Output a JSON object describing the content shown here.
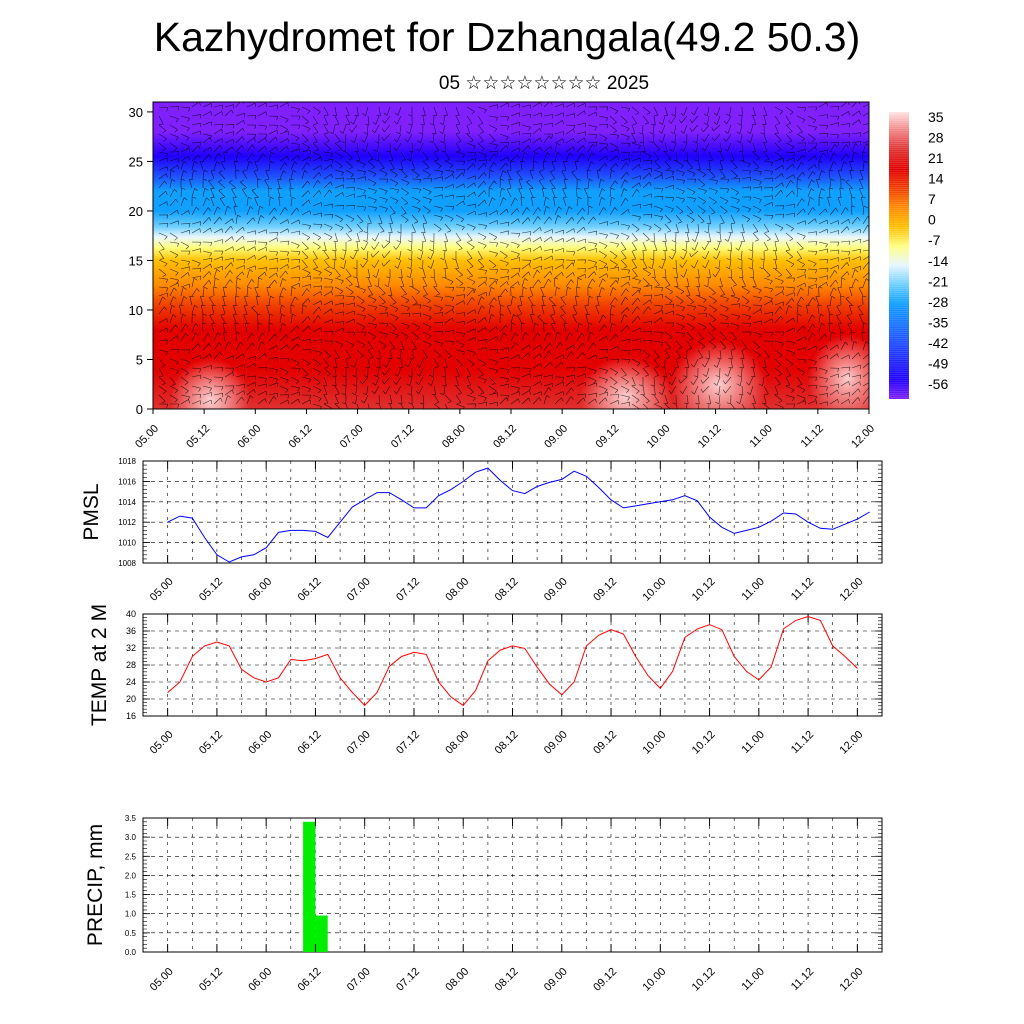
{
  "header": {
    "title": "Kazhydromet for Dzhangala(49.2 50.3)",
    "subtitle": "05 ☆☆☆☆☆☆☆☆ 2025"
  },
  "chart_data": [
    {
      "type": "heatmap",
      "name": "temperature-cross-section",
      "x_labels": [
        "05.00",
        "05.12",
        "06.00",
        "06.12",
        "07.00",
        "07.12",
        "08.00",
        "08.12",
        "09.00",
        "09.12",
        "10.00",
        "10.12",
        "11.00",
        "11.12",
        "12.00"
      ],
      "y_ticks": [
        0,
        5,
        10,
        15,
        20,
        25,
        30
      ],
      "ylim": [
        0,
        31
      ],
      "colorbar_labels": [
        "35",
        "28",
        "21",
        "14",
        "7",
        "0",
        "-7",
        "-14",
        "-21",
        "-28",
        "-35",
        "-42",
        "-49",
        "-56"
      ],
      "colorbar_range": [
        -63,
        42
      ],
      "overlay": "wind barbs",
      "colors": {
        "c42": "#ffe4e4",
        "c35": "#f08080",
        "c28": "#e03030",
        "c21": "#e30000",
        "c14": "#f04000",
        "c7": "#ff8a00",
        "c0": "#ffc000",
        "cm7": "#ffff80",
        "cm14": "#e8f6ff",
        "cm21": "#70d0ff",
        "cm28": "#10a0ff",
        "cm42": "#2050ff",
        "cm56": "#2000ff",
        "cm63": "#8020ff"
      }
    },
    {
      "type": "line",
      "ylabel": "PMSL",
      "x_labels": [
        "05.00",
        "05.12",
        "06.00",
        "06.12",
        "07.00",
        "07.12",
        "08.00",
        "08.12",
        "09.00",
        "09.12",
        "10.00",
        "10.12",
        "11.00",
        "11.12",
        "12.00"
      ],
      "y_ticks": [
        1008,
        1010,
        1012,
        1014,
        1016,
        1018
      ],
      "ylim": [
        1008,
        1018
      ],
      "values": [
        1012.0,
        1012.6,
        1012.4,
        1010.5,
        1008.8,
        1008.1,
        1008.6,
        1008.8,
        1009.5,
        1011.0,
        1011.2,
        1011.2,
        1011.1,
        1010.5,
        1012.0,
        1013.5,
        1014.2,
        1014.9,
        1014.9,
        1014.2,
        1013.4,
        1013.4,
        1014.6,
        1015.2,
        1016.0,
        1016.9,
        1017.3,
        1016.1,
        1015.1,
        1014.8,
        1015.5,
        1015.9,
        1016.2,
        1017.0,
        1016.5,
        1015.4,
        1014.2,
        1013.4,
        1013.6,
        1013.8,
        1014.0,
        1014.2,
        1014.6,
        1014.1,
        1012.5,
        1011.5,
        1010.9,
        1011.2,
        1011.5,
        1012.1,
        1012.9,
        1012.8,
        1012.0,
        1011.4,
        1011.3,
        1011.8,
        1012.3,
        1013.0
      ],
      "color": "#0000ff"
    },
    {
      "type": "line",
      "ylabel": "TEMP at 2 M",
      "x_labels": [
        "05.00",
        "05.12",
        "06.00",
        "06.12",
        "07.00",
        "07.12",
        "08.00",
        "08.12",
        "09.00",
        "09.12",
        "10.00",
        "10.12",
        "11.00",
        "11.12",
        "12.00"
      ],
      "y_ticks": [
        16,
        20,
        24,
        28,
        32,
        36,
        40
      ],
      "ylim": [
        16,
        40
      ],
      "values": [
        21.5,
        24.0,
        30.0,
        32.5,
        33.4,
        32.5,
        27.0,
        25.0,
        24.0,
        25.0,
        29.3,
        29.0,
        29.5,
        30.5,
        25.0,
        21.5,
        18.5,
        21.5,
        27.7,
        30.0,
        31.0,
        30.5,
        24.0,
        20.5,
        18.5,
        22.0,
        29.0,
        31.5,
        32.5,
        31.9,
        27.5,
        23.5,
        21.0,
        24.0,
        32.5,
        35.0,
        36.3,
        35.3,
        30.0,
        25.5,
        22.5,
        26.5,
        34.5,
        36.5,
        37.5,
        36.3,
        30.0,
        26.5,
        24.5,
        27.5,
        36.5,
        38.5,
        39.4,
        38.5,
        32.5,
        30.0,
        27.2
      ],
      "color": "#ff0000"
    },
    {
      "type": "bar",
      "ylabel": "PRECIP, mm",
      "x_labels": [
        "05.00",
        "05.12",
        "06.00",
        "06.12",
        "07.00",
        "07.12",
        "08.00",
        "08.12",
        "09.00",
        "09.12",
        "10.00",
        "10.12",
        "11.00",
        "11.12",
        "12.00"
      ],
      "y_ticks": [
        "0.0",
        "0.5",
        "1.0",
        "1.5",
        "2.0",
        "2.5",
        "3.0",
        "3.5"
      ],
      "ylim": [
        0,
        3.5
      ],
      "bars": [
        {
          "x_hour": 33,
          "value": 3.4
        },
        {
          "x_hour": 36,
          "value": 0.95
        }
      ],
      "color": "#00ee00"
    }
  ]
}
